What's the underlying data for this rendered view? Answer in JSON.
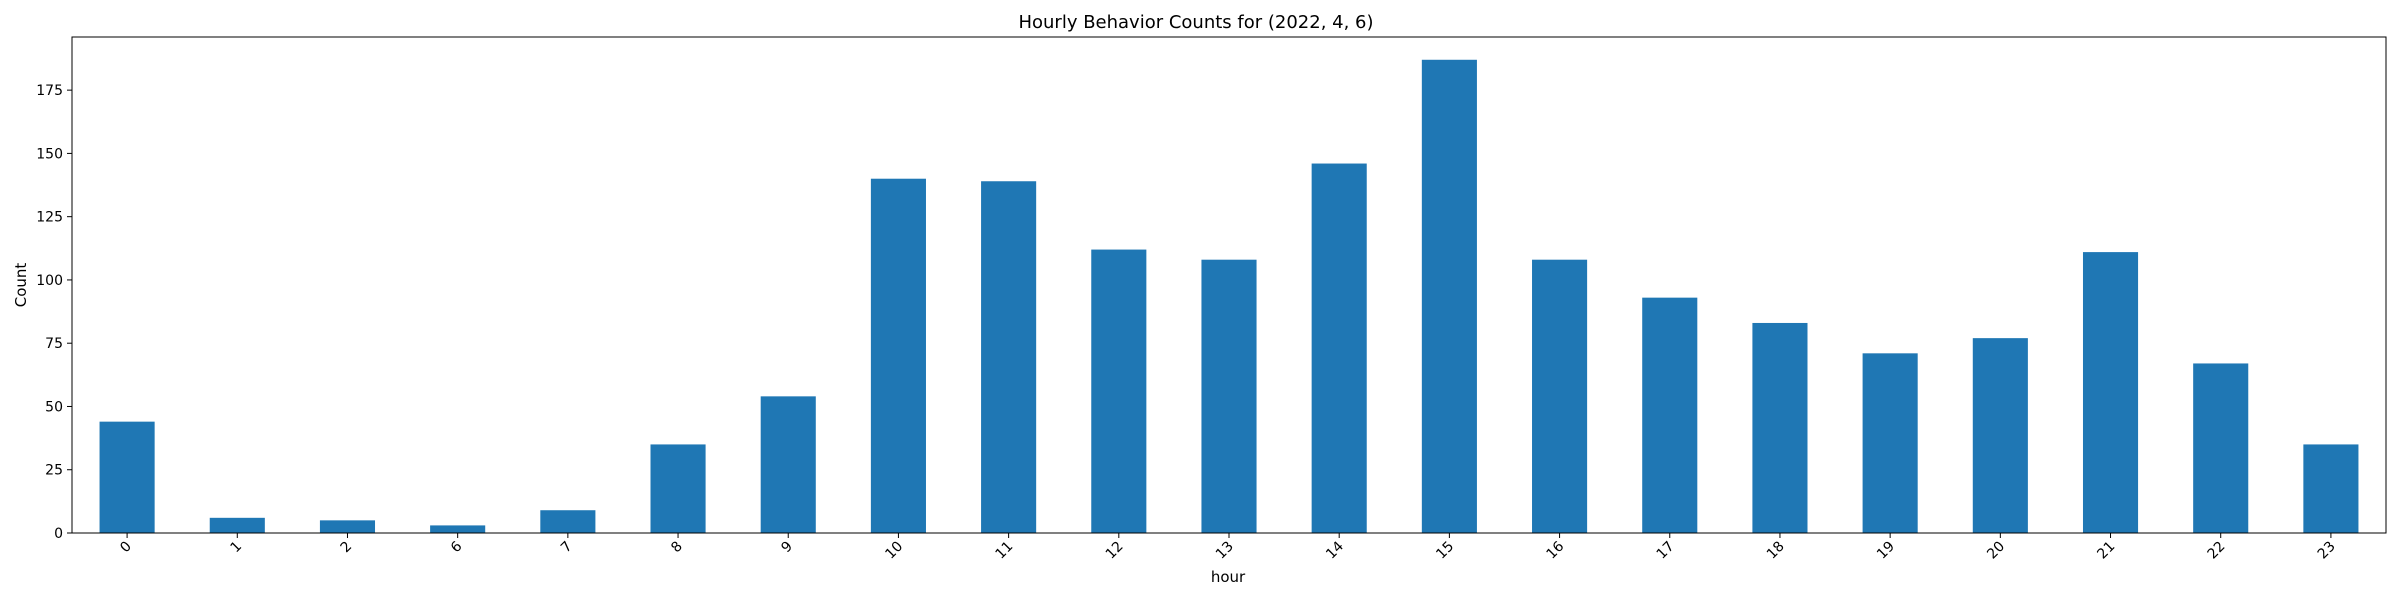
{
  "chart_data": {
    "type": "bar",
    "title": "Hourly Behavior Counts for (2022, 4, 6)",
    "xlabel": "hour",
    "ylabel": "Count",
    "categories": [
      "0",
      "1",
      "2",
      "6",
      "7",
      "8",
      "9",
      "10",
      "11",
      "12",
      "13",
      "14",
      "15",
      "16",
      "17",
      "18",
      "19",
      "20",
      "21",
      "22",
      "23"
    ],
    "values": [
      44,
      6,
      5,
      3,
      9,
      35,
      54,
      140,
      139,
      112,
      108,
      146,
      187,
      108,
      93,
      83,
      71,
      77,
      111,
      67,
      35
    ],
    "ylim": [
      0,
      196
    ],
    "yticks": [
      0,
      25,
      50,
      75,
      100,
      125,
      150,
      175
    ],
    "bar_color": "#1f77b4",
    "grid": false,
    "legend": "none"
  }
}
